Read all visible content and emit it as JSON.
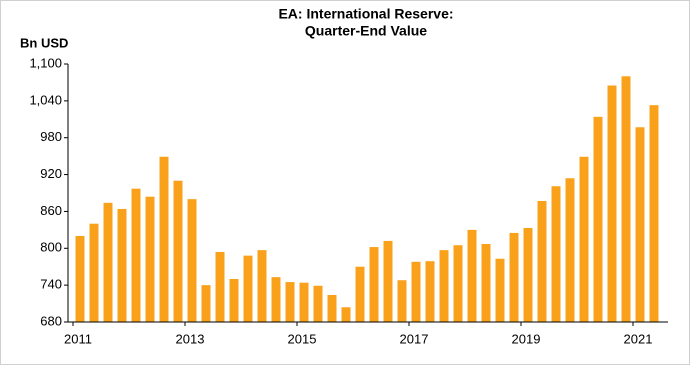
{
  "chart_data": {
    "type": "bar",
    "title": [
      "EA: International Reserve:",
      "Quarter-End Value"
    ],
    "ylabel": "Bn USD",
    "categories": [
      "2011",
      null,
      null,
      null,
      null,
      null,
      null,
      null,
      "2013",
      null,
      null,
      null,
      null,
      null,
      null,
      null,
      "2015",
      null,
      null,
      null,
      null,
      null,
      null,
      null,
      "2017",
      null,
      null,
      null,
      null,
      null,
      null,
      null,
      "2019",
      null,
      null,
      null,
      null,
      null,
      null,
      null,
      "2021",
      null
    ],
    "values": [
      820,
      840,
      874,
      864,
      897,
      884,
      949,
      910,
      880,
      740,
      794,
      750,
      788,
      797,
      753,
      745,
      744,
      739,
      724,
      704,
      770,
      802,
      812,
      748,
      778,
      779,
      797,
      805,
      830,
      807,
      783,
      825,
      833,
      877,
      901,
      914,
      949,
      1014,
      1065,
      1080,
      997,
      1033
    ],
    "color": "#f9a11b",
    "ylim": [
      680,
      1100
    ],
    "yticks": [
      680,
      740,
      800,
      860,
      920,
      980,
      {
        "value": 1040,
        "label": "1,040"
      },
      {
        "value": 1100,
        "label": "1,100"
      }
    ],
    "grid": false
  }
}
